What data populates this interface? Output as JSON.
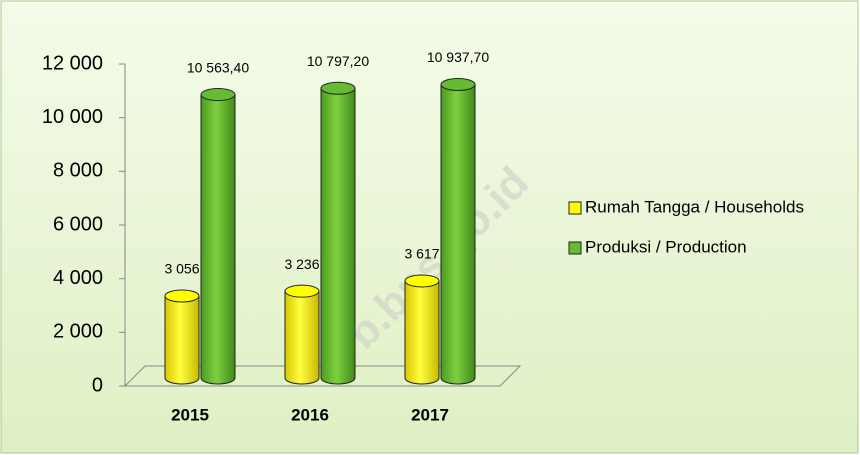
{
  "chart_data": {
    "type": "bar3d",
    "categories": [
      "2015",
      "2016",
      "2017"
    ],
    "series": [
      {
        "name": "Rumah Tangga / Households",
        "color": "#ffff00",
        "values": [
          3056,
          3236,
          3617
        ],
        "value_labels": [
          "3 056",
          "3 236",
          "3 617"
        ]
      },
      {
        "name": "Produksi / Production",
        "color": "#66bb33",
        "values": [
          10563.4,
          10797.2,
          10937.7
        ],
        "value_labels": [
          "10 563,40",
          "10 797,20",
          "10 937,70"
        ]
      }
    ],
    "ylim": [
      0,
      12000
    ],
    "yticks": [
      0,
      {
        "value": 2000,
        "label": "2 000"
      },
      {
        "value": 4000,
        "label": "4 000"
      },
      {
        "value": 6000,
        "label": "6 000"
      },
      {
        "value": 8000,
        "label": "8 000"
      },
      {
        "value": 10000,
        "label": "10 000"
      },
      {
        "value": 12000,
        "label": "12 000"
      }
    ],
    "legend": "right",
    "watermark": "b.bps.go.id"
  }
}
